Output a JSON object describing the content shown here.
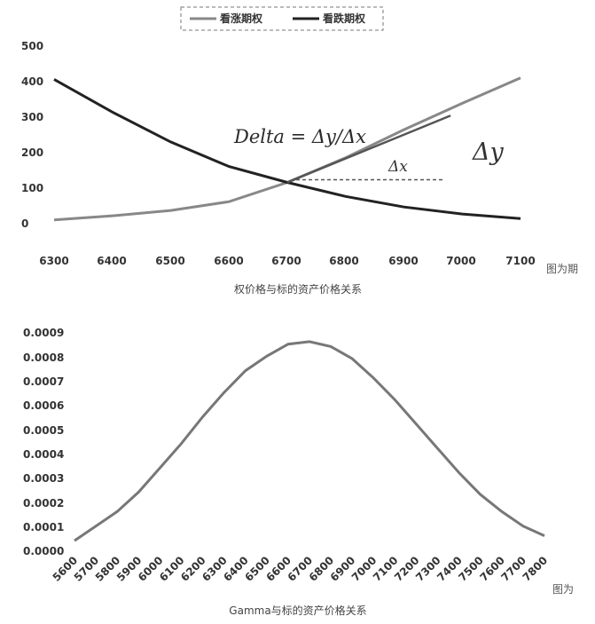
{
  "chart_data": [
    {
      "type": "line",
      "title": "",
      "xlabel": "",
      "ylabel": "",
      "x": [
        6300,
        6400,
        6500,
        6600,
        6700,
        6800,
        6900,
        7000,
        7100
      ],
      "xlim": [
        6300,
        7100
      ],
      "ylim": [
        0,
        500
      ],
      "x_ticks": [
        "6300",
        "6400",
        "6500",
        "6600",
        "6700",
        "6800",
        "6900",
        "7000",
        "7100"
      ],
      "y_ticks": [
        "0",
        "100",
        "200",
        "300",
        "400",
        "500"
      ],
      "grid": false,
      "legend_position": "top",
      "series": [
        {
          "name": "看涨期权",
          "color": "#888888",
          "values": [
            8,
            20,
            35,
            60,
            115,
            185,
            265,
            340,
            412
          ]
        },
        {
          "name": "看跌期权",
          "color": "#222222",
          "values": [
            408,
            315,
            230,
            160,
            115,
            75,
            45,
            25,
            12
          ]
        }
      ],
      "annotations": {
        "formula": "Delta = Δy/Δx",
        "dx": "Δx",
        "dy": "Δy"
      },
      "tangent": {
        "x0": 6700,
        "y0": 115,
        "x1": 6980,
        "y1": 305,
        "dash_to_x": 6970
      },
      "caption_left": "图为期",
      "caption_center": "权价格与标的资产价格关系"
    },
    {
      "type": "line",
      "title": "",
      "xlabel": "",
      "ylabel": "",
      "x": [
        5600,
        5700,
        5800,
        5900,
        6000,
        6100,
        6200,
        6300,
        6400,
        6500,
        6600,
        6700,
        6800,
        6900,
        7000,
        7100,
        7200,
        7300,
        7400,
        7500,
        7600,
        7700,
        7800
      ],
      "xlim": [
        5600,
        7800
      ],
      "ylim": [
        0,
        0.0009
      ],
      "x_ticks": [
        "5600",
        "5700",
        "5800",
        "5900",
        "6000",
        "6100",
        "6200",
        "6300",
        "6400",
        "6500",
        "6600",
        "6700",
        "6800",
        "6900",
        "7000",
        "7100",
        "7200",
        "7300",
        "7400",
        "7500",
        "7600",
        "7700",
        "7800"
      ],
      "y_ticks": [
        "0.0000",
        "0.0001",
        "0.0002",
        "0.0003",
        "0.0004",
        "0.0005",
        "0.0006",
        "0.0007",
        "0.0008",
        "0.0009"
      ],
      "grid": false,
      "series": [
        {
          "color": "#777777",
          "values": [
            4e-05,
            0.0001,
            0.00016,
            0.00024,
            0.00034,
            0.00044,
            0.00055,
            0.00065,
            0.00074,
            0.0008,
            0.00085,
            0.00086,
            0.00084,
            0.00079,
            0.00071,
            0.00062,
            0.00052,
            0.00042,
            0.00032,
            0.00023,
            0.00016,
            0.0001,
            6e-05
          ]
        }
      ],
      "caption_left": "图为",
      "caption_center": "Gamma与标的资产价格关系"
    }
  ]
}
